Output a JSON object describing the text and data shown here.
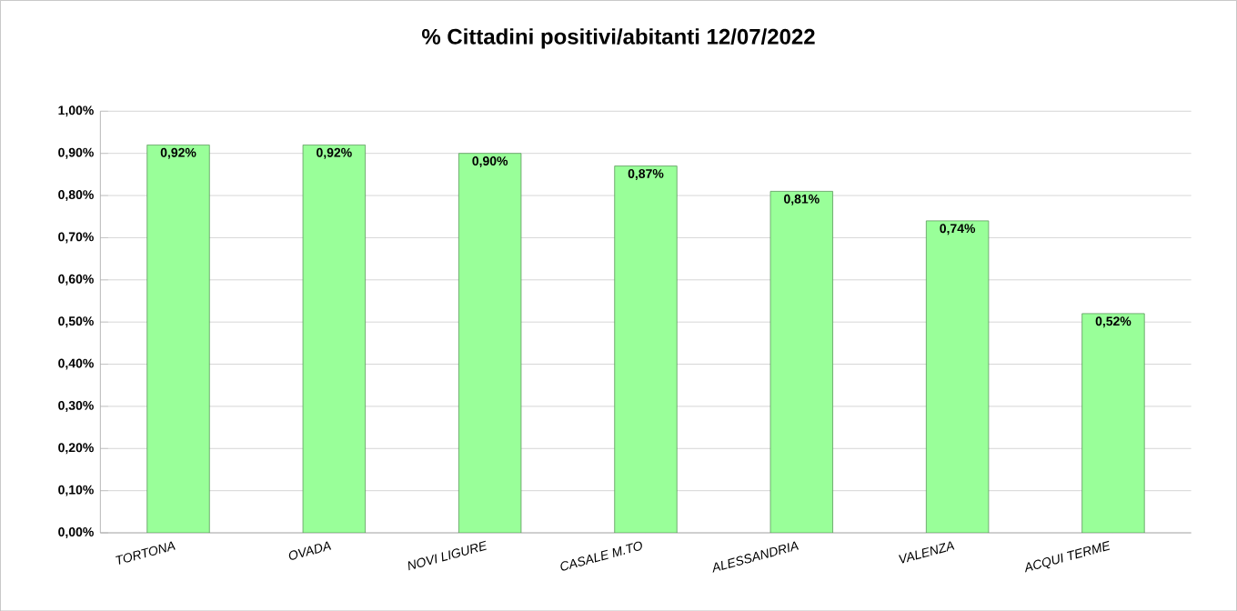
{
  "chart_data": {
    "type": "bar",
    "title": "% Cittadini positivi/abitanti 12/07/2022",
    "categories": [
      "TORTONA",
      "OVADA",
      "NOVI LIGURE",
      "CASALE M.TO",
      "ALESSANDRIA",
      "VALENZA",
      "ACQUI TERME"
    ],
    "values": [
      0.92,
      0.92,
      0.9,
      0.87,
      0.81,
      0.74,
      0.52
    ],
    "value_labels": [
      "0,92%",
      "0,92%",
      "0,90%",
      "0,87%",
      "0,81%",
      "0,74%",
      "0,52%"
    ],
    "color": "#99ff99",
    "ylim": [
      0,
      1
    ],
    "yticks": [
      {
        "value": 0,
        "label": "0,00%"
      },
      {
        "value": 0.1,
        "label": "0,10%"
      },
      {
        "value": 0.2,
        "label": "0,20%"
      },
      {
        "value": 0.3,
        "label": "0,30%"
      },
      {
        "value": 0.4,
        "label": "0,40%"
      },
      {
        "value": 0.5,
        "label": "0,50%"
      },
      {
        "value": 0.6,
        "label": "0,60%"
      },
      {
        "value": 0.7,
        "label": "0,70%"
      },
      {
        "value": 0.8,
        "label": "0,80%"
      },
      {
        "value": 0.9,
        "label": "0,90%"
      },
      {
        "value": 1.0,
        "label": "1,00%"
      }
    ],
    "grid": "y"
  }
}
